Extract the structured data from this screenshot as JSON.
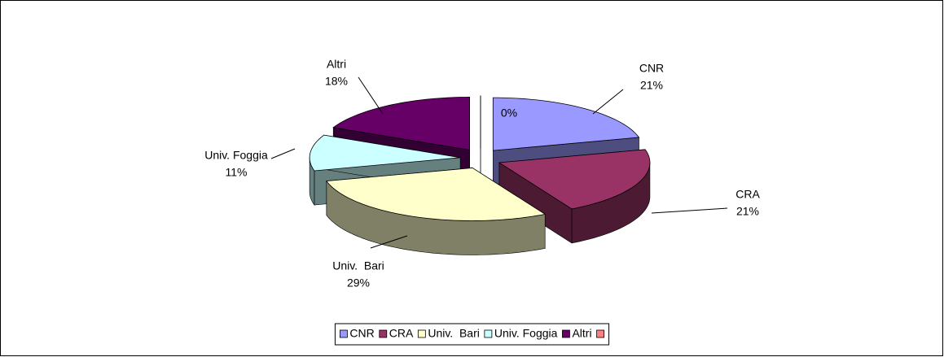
{
  "chart_data": {
    "type": "pie",
    "categories": [
      "CNR",
      "CRA",
      "Univ.  Bari",
      "Univ. Foggia",
      "Altri",
      null
    ],
    "values": [
      21,
      21,
      29,
      11,
      18,
      0
    ],
    "value_labels": [
      "21%",
      "21%",
      "29%",
      "11%",
      "18%",
      "0%"
    ],
    "colors": [
      "#9999ff",
      "#993366",
      "#ffffcc",
      "#ccffff",
      "#660066",
      "#ff8080"
    ],
    "legend": "bottom"
  }
}
